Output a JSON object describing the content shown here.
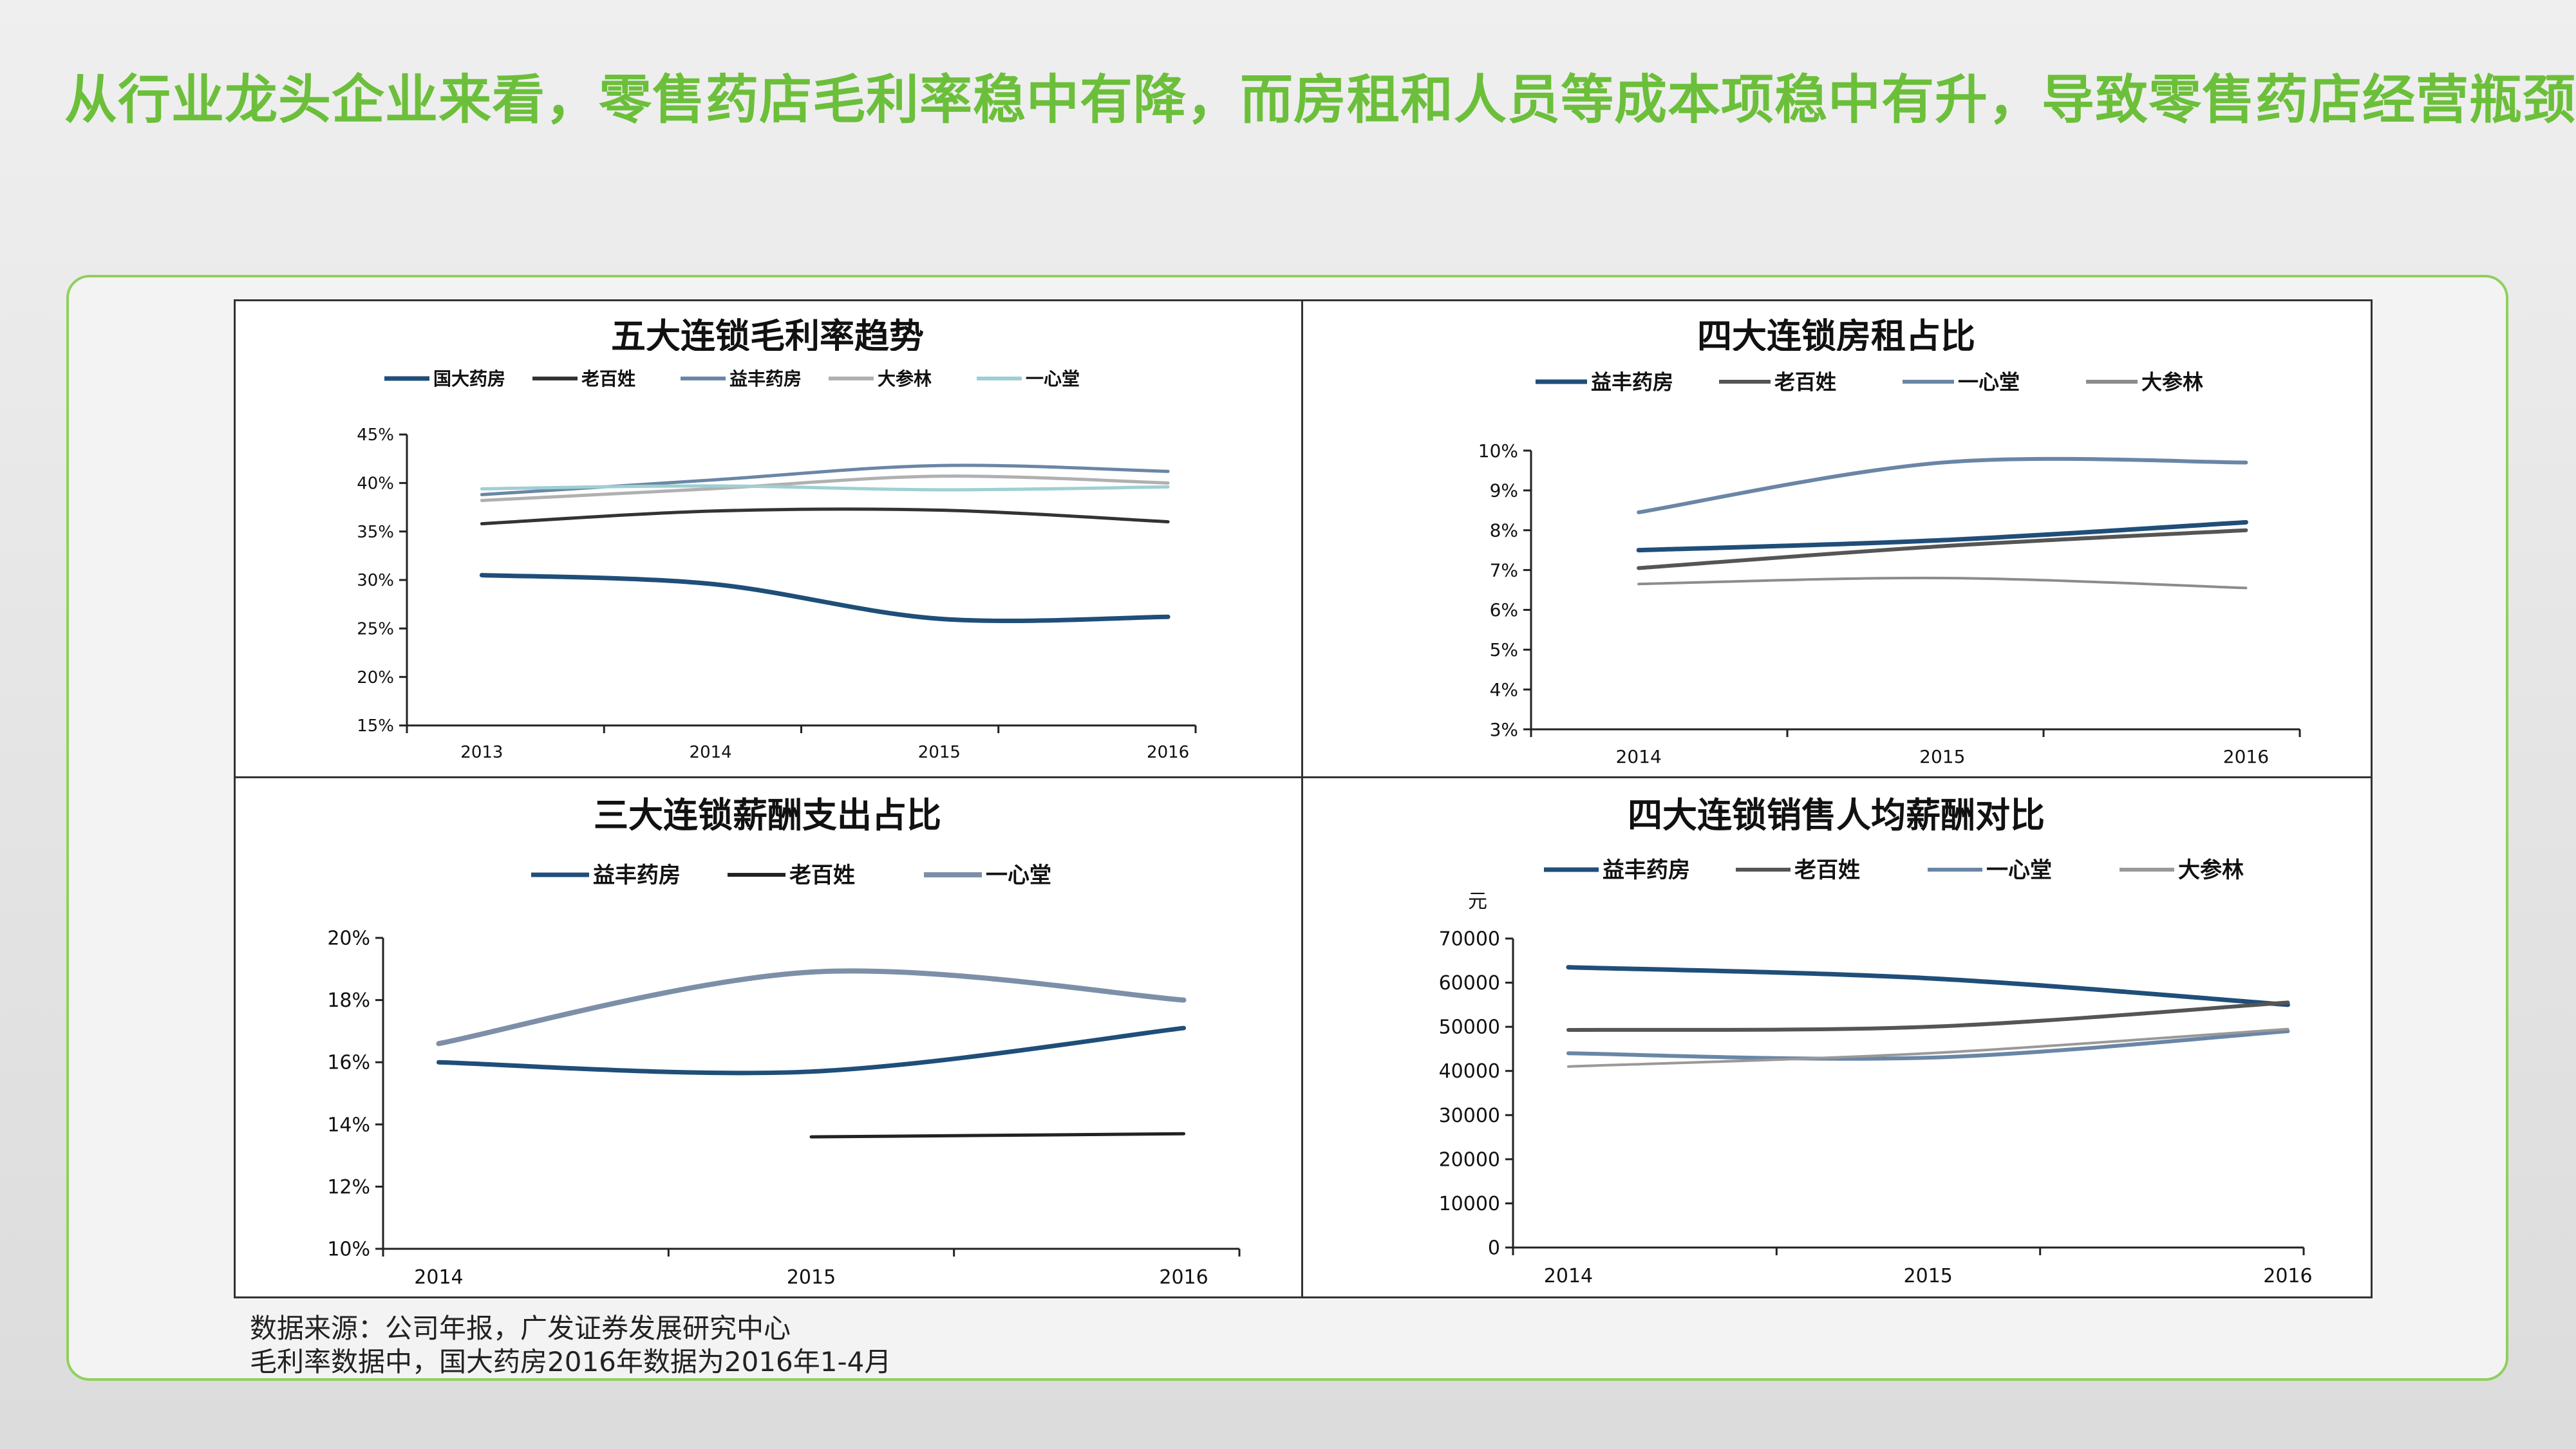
{
  "headline": "从行业龙头企业来看，零售药店毛利率稳中有降，而房租和人员等成本项稳中有升，导致零售药店经营瓶颈",
  "colors": {
    "headline": "#6cbf3a",
    "frame_border": "#8fd05d"
  },
  "notes": [
    "数据来源：公司年报，广发证券发展研究中心",
    "毛利率数据中，国大药房2016年数据为2016年1-4月"
  ],
  "chart_data": [
    {
      "id": "gross-margin",
      "type": "line",
      "title": "五大连锁毛利率趋势",
      "categories": [
        "2013",
        "2014",
        "2015",
        "2016"
      ],
      "ylim": [
        15,
        45
      ],
      "yticks": [
        15,
        20,
        25,
        30,
        35,
        40,
        45
      ],
      "ytick_format": "percent",
      "series": [
        {
          "name": "国大药房",
          "color": "#1f4e79",
          "width": 7,
          "values": [
            30.5,
            29.6,
            26.0,
            26.2
          ]
        },
        {
          "name": "老百姓",
          "color": "#333333",
          "width": 5,
          "values": [
            35.8,
            37.1,
            37.2,
            36.0
          ]
        },
        {
          "name": "益丰药房",
          "color": "#6a86a6",
          "width": 5,
          "values": [
            38.8,
            40.3,
            41.8,
            41.2
          ]
        },
        {
          "name": "大参林",
          "color": "#b0b0b0",
          "width": 5,
          "values": [
            38.2,
            39.4,
            40.7,
            40.0
          ]
        },
        {
          "name": "一心堂",
          "color": "#9ecfd3",
          "width": 5,
          "values": [
            39.4,
            39.7,
            39.3,
            39.6
          ]
        }
      ]
    },
    {
      "id": "rent-ratio",
      "type": "line",
      "title": "四大连锁房租占比",
      "categories": [
        "2014",
        "2015",
        "2016"
      ],
      "ylim": [
        3,
        10
      ],
      "yticks": [
        3,
        4,
        5,
        6,
        7,
        8,
        9,
        10
      ],
      "ytick_format": "percent",
      "series": [
        {
          "name": "益丰药房",
          "color": "#1f4e79",
          "width": 7,
          "values": [
            7.5,
            7.75,
            8.2
          ]
        },
        {
          "name": "老百姓",
          "color": "#555555",
          "width": 6,
          "values": [
            7.05,
            7.6,
            8.0
          ]
        },
        {
          "name": "一心堂",
          "color": "#6a86a6",
          "width": 6,
          "values": [
            8.45,
            9.7,
            9.7
          ]
        },
        {
          "name": "大参林",
          "color": "#8c8c8c",
          "width": 4,
          "values": [
            6.65,
            6.8,
            6.55
          ]
        }
      ]
    },
    {
      "id": "salary-ratio",
      "type": "line",
      "title": "三大连锁薪酬支出占比",
      "categories": [
        "2014",
        "2015",
        "2016"
      ],
      "ylim": [
        10,
        20
      ],
      "yticks": [
        10,
        12,
        14,
        16,
        18,
        20
      ],
      "ytick_format": "percent",
      "series": [
        {
          "name": "益丰药房",
          "color": "#1f4e79",
          "width": 7,
          "values": [
            16.0,
            15.7,
            17.1
          ]
        },
        {
          "name": "老百姓",
          "color": "#222222",
          "width": 5,
          "values": [
            null,
            13.6,
            13.7
          ]
        },
        {
          "name": "一心堂",
          "color": "#7d8fa8",
          "width": 8,
          "values": [
            16.6,
            18.9,
            18.0
          ]
        }
      ]
    },
    {
      "id": "salary-per-capita",
      "type": "line",
      "title": "四大连锁销售人均薪酬对比",
      "categories": [
        "2014",
        "2015",
        "2016"
      ],
      "ylim": [
        0,
        70000
      ],
      "yticks": [
        0,
        10000,
        20000,
        30000,
        40000,
        50000,
        60000,
        70000
      ],
      "ytick_format": "plain",
      "ylabel": "元",
      "series": [
        {
          "name": "益丰药房",
          "color": "#1f4e79",
          "width": 7,
          "values": [
            63500,
            61000,
            55000
          ]
        },
        {
          "name": "老百姓",
          "color": "#555555",
          "width": 6,
          "values": [
            49300,
            50000,
            55500
          ]
        },
        {
          "name": "一心堂",
          "color": "#6a86a6",
          "width": 6,
          "values": [
            44000,
            43000,
            49000
          ]
        },
        {
          "name": "大参林",
          "color": "#999999",
          "width": 4,
          "values": [
            41000,
            44000,
            49500
          ]
        }
      ]
    }
  ]
}
